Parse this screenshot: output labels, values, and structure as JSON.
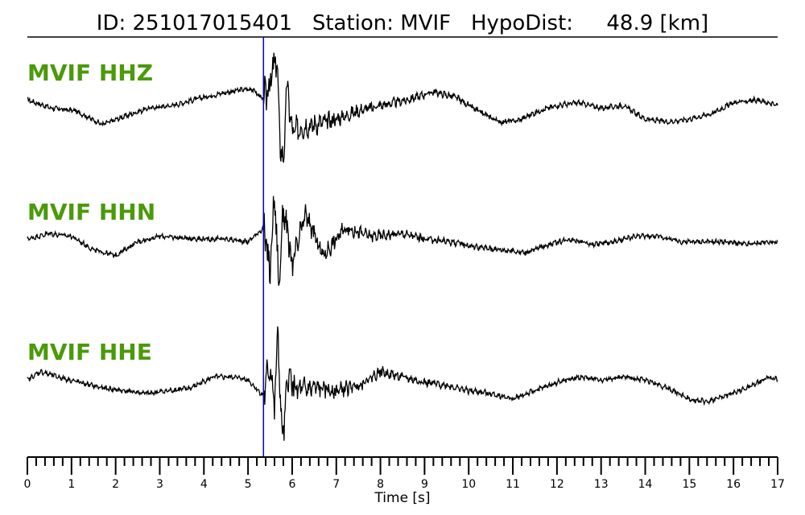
{
  "title": {
    "id_label": "ID:",
    "id_value": "251017015401",
    "station_label": "Station:",
    "station_value": "MVIF",
    "hypodist_label": "HypoDist:",
    "hypodist_value": "48.9",
    "hypodist_unit": "[km]"
  },
  "chart_data": {
    "type": "line",
    "xlabel": "Time [s]",
    "xlim": [
      0,
      17
    ],
    "major_ticks": [
      "0",
      "1",
      "2",
      "3",
      "4",
      "5",
      "6",
      "7",
      "8",
      "9",
      "10",
      "11",
      "12",
      "13",
      "14",
      "15",
      "16",
      "17"
    ],
    "minor_tick_step": 0.2,
    "pick_time": 5.35,
    "pick_color": "#0000cc",
    "trace_color": "#000000",
    "label_color": "#4a9a0a",
    "grid": false,
    "series": [
      {
        "name": "MVIF HHZ",
        "x": [
          0.0,
          0.55,
          1.1,
          1.7,
          2.2,
          2.75,
          3.3,
          3.85,
          4.4,
          4.8,
          5.1,
          5.35,
          5.55,
          5.65,
          5.72,
          5.8,
          5.88,
          6.0,
          6.2,
          6.5,
          7.0,
          7.5,
          8.0,
          8.6,
          9.2,
          9.7,
          10.2,
          10.7,
          11.1,
          11.6,
          12.0,
          12.5,
          13.0,
          13.5,
          14.0,
          14.5,
          15.0,
          15.5,
          16.0,
          16.5,
          17.0
        ],
        "y": [
          0.1,
          -0.05,
          -0.1,
          -0.35,
          -0.2,
          -0.05,
          0.0,
          0.12,
          0.22,
          0.28,
          0.3,
          0.1,
          0.55,
          0.9,
          -0.6,
          -1.1,
          0.4,
          -0.5,
          -0.4,
          -0.35,
          -0.25,
          -0.1,
          0.0,
          0.1,
          0.25,
          0.15,
          -0.1,
          -0.3,
          -0.28,
          -0.1,
          0.0,
          0.05,
          -0.05,
          0.0,
          -0.25,
          -0.3,
          -0.25,
          -0.15,
          0.05,
          0.1,
          0.0
        ]
      },
      {
        "name": "MVIF HHN",
        "x": [
          0.0,
          0.5,
          1.0,
          1.5,
          2.0,
          2.5,
          3.0,
          3.5,
          4.0,
          4.5,
          5.0,
          5.35,
          5.5,
          5.6,
          5.7,
          5.8,
          6.0,
          6.3,
          6.7,
          7.2,
          7.8,
          8.5,
          9.0,
          9.6,
          10.2,
          10.8,
          11.3,
          11.8,
          12.3,
          12.8,
          13.3,
          13.8,
          14.3,
          14.8,
          15.3,
          15.8,
          16.3,
          16.8,
          17.0
        ],
        "y": [
          0.0,
          0.1,
          0.05,
          -0.2,
          -0.3,
          -0.05,
          0.05,
          0.02,
          0.0,
          0.0,
          -0.05,
          0.2,
          -0.6,
          0.85,
          -0.9,
          0.6,
          -0.5,
          0.45,
          -0.3,
          0.2,
          0.05,
          0.1,
          0.0,
          -0.05,
          -0.15,
          -0.2,
          -0.25,
          -0.1,
          0.0,
          -0.1,
          -0.05,
          0.05,
          0.05,
          -0.05,
          -0.05,
          -0.05,
          -0.1,
          -0.05,
          -0.08
        ]
      },
      {
        "name": "MVIF HHE",
        "x": [
          0.0,
          0.3,
          0.7,
          1.2,
          1.7,
          2.2,
          2.7,
          3.2,
          3.7,
          4.2,
          4.7,
          5.0,
          5.35,
          5.5,
          5.6,
          5.68,
          5.75,
          5.82,
          5.9,
          6.1,
          6.5,
          7.0,
          7.5,
          8.0,
          8.5,
          9.0,
          9.5,
          10.0,
          10.5,
          11.0,
          11.5,
          12.0,
          12.5,
          13.0,
          13.5,
          14.0,
          14.5,
          15.0,
          15.4,
          15.8,
          16.3,
          16.8,
          17.0
        ],
        "y": [
          0.0,
          0.15,
          0.05,
          -0.05,
          -0.15,
          -0.2,
          -0.25,
          -0.2,
          -0.15,
          0.05,
          0.05,
          0.0,
          -0.3,
          0.3,
          -0.5,
          0.9,
          -0.85,
          -0.9,
          0.1,
          -0.2,
          -0.15,
          -0.2,
          -0.1,
          0.15,
          0.05,
          -0.05,
          -0.1,
          -0.2,
          -0.25,
          -0.35,
          -0.2,
          -0.05,
          0.05,
          0.0,
          0.05,
          0.0,
          -0.15,
          -0.35,
          -0.4,
          -0.3,
          -0.15,
          0.05,
          0.0
        ]
      }
    ]
  }
}
